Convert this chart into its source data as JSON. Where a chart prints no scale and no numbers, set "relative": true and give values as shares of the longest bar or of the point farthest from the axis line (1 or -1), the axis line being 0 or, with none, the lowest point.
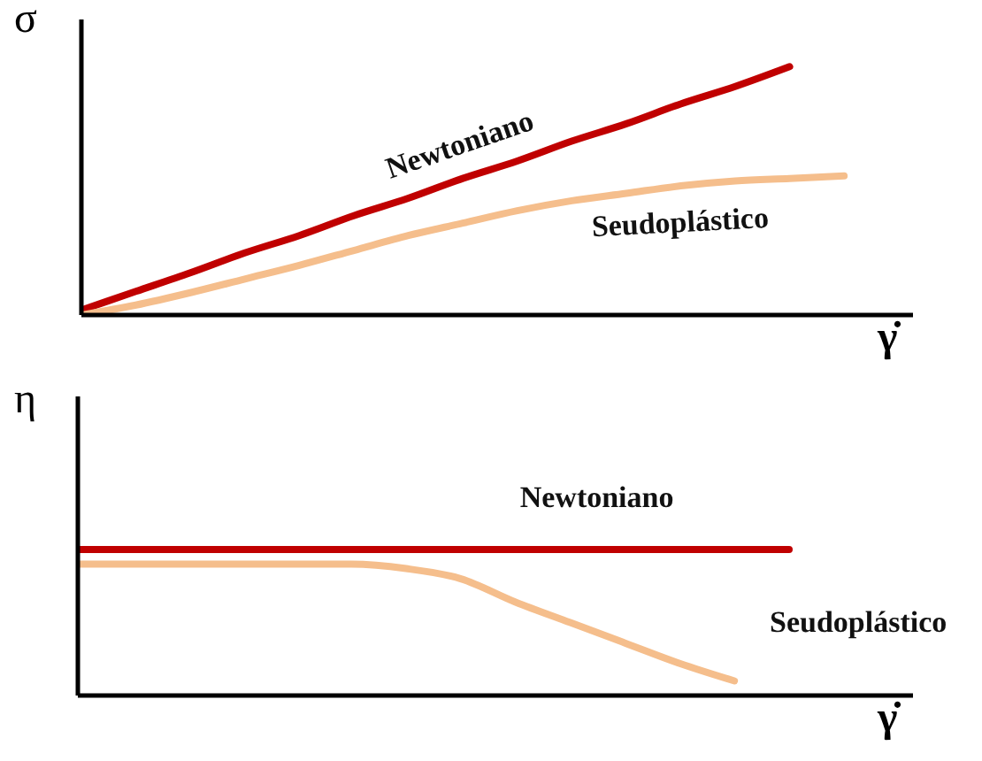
{
  "chart_data": [
    {
      "type": "line",
      "relative": true,
      "ylabel": "σ",
      "xlabel": "γ̇",
      "legend": false,
      "categories": [
        null,
        null,
        null,
        null,
        null,
        null,
        null,
        null,
        null,
        null,
        null,
        null,
        null,
        null,
        null
      ],
      "series": [
        {
          "name": "Newtoniano",
          "color": "#c00000",
          "values": [
            0.02,
            0.095,
            0.17,
            0.25,
            0.32,
            0.4,
            0.47,
            0.55,
            0.62,
            0.7,
            0.77,
            0.85,
            0.92,
            1.0,
            null
          ]
        },
        {
          "name": "Seudoplástico",
          "color": "#f5be8c",
          "values": [
            0,
            0.04,
            0.09,
            0.145,
            0.2,
            0.26,
            0.32,
            0.37,
            0.42,
            0.46,
            0.49,
            0.52,
            0.54,
            0.55,
            0.56
          ]
        }
      ]
    },
    {
      "type": "line",
      "relative": true,
      "ylabel": "η",
      "xlabel": "γ̇",
      "legend": false,
      "categories": [
        null,
        null,
        null,
        null,
        null,
        null,
        null,
        null,
        null,
        null,
        null,
        null,
        null,
        null,
        null
      ],
      "series": [
        {
          "name": "Newtoniano",
          "color": "#c00000",
          "values": [
            1,
            1,
            1,
            1,
            1,
            1,
            1,
            1,
            1,
            1,
            1,
            1,
            1,
            1,
            null
          ]
        },
        {
          "name": "Seudoplástico",
          "color": "#f5be8c",
          "values": [
            0.9,
            0.9,
            0.9,
            0.9,
            0.9,
            0.9,
            0.87,
            0.8,
            0.64,
            0.5,
            0.36,
            0.22,
            0.1,
            null,
            null
          ]
        }
      ]
    }
  ]
}
